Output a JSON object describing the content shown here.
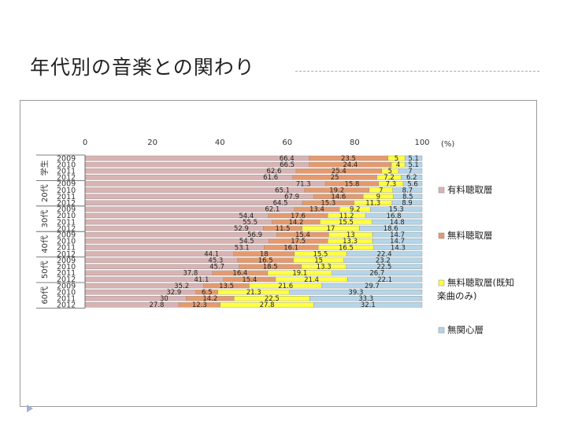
{
  "slide": {
    "title": "年代別の音楽との関わり"
  },
  "chart_data": {
    "type": "bar",
    "orientation": "horizontal",
    "stacked": "percent",
    "unit_label": "(%)",
    "xlim": [
      0,
      100
    ],
    "x_ticks": [
      0,
      20,
      40,
      60,
      80,
      100
    ],
    "groups": [
      {
        "name": "学生",
        "years": [
          "2009",
          "2010",
          "2011",
          "2012"
        ]
      },
      {
        "name": "20代",
        "years": [
          "2009",
          "2010",
          "2011",
          "2012"
        ]
      },
      {
        "name": "30代",
        "years": [
          "2009",
          "2010",
          "2011",
          "2012"
        ]
      },
      {
        "name": "40代",
        "years": [
          "2009",
          "2010",
          "2011",
          "2012"
        ]
      },
      {
        "name": "50代",
        "years": [
          "2009",
          "2010",
          "2011",
          "2012"
        ]
      },
      {
        "name": "60代",
        "years": [
          "2009",
          "2010",
          "2011",
          "2012"
        ]
      }
    ],
    "series": [
      {
        "name": "有料聴取層",
        "color": "#d9b3b3",
        "values": [
          66.4,
          66.5,
          62.6,
          61.6,
          71.3,
          65.1,
          67.9,
          64.5,
          62.1,
          54.4,
          55.5,
          52.9,
          56.9,
          54.5,
          53.1,
          44.1,
          45.3,
          45.7,
          37.8,
          41.1,
          35.2,
          32.9,
          30,
          27.8
        ]
      },
      {
        "name": "無料聴取層",
        "color": "#e59a6e",
        "values": [
          23.5,
          24.4,
          25.4,
          25,
          15.8,
          19.2,
          14.6,
          15.3,
          13.4,
          17.6,
          14.2,
          11.5,
          15.4,
          17.5,
          16.1,
          18,
          16.5,
          18.5,
          16.4,
          15.4,
          13.5,
          6.5,
          14.2,
          12.3
        ]
      },
      {
        "name": "無料聴取層(既知楽曲のみ)",
        "color": "#ffff44",
        "values": [
          5,
          4,
          5,
          7.2,
          7.3,
          7,
          9,
          11.3,
          9.2,
          11.2,
          15.5,
          17,
          13,
          13.3,
          16.5,
          15.5,
          15,
          13.3,
          19.1,
          21.4,
          21.6,
          21.3,
          22.5,
          27.8
        ]
      },
      {
        "name": "無関心層",
        "color": "#b5d5e8",
        "values": [
          5.1,
          5.1,
          7,
          6.2,
          5.6,
          8.7,
          8.5,
          8.9,
          15.3,
          16.8,
          14.8,
          18.6,
          14.7,
          14.7,
          14.3,
          22.4,
          23.2,
          22.5,
          26.7,
          22.1,
          29.7,
          39.3,
          33.3,
          32.1
        ]
      }
    ],
    "data_labels": [
      [
        "66.4",
        "23.5",
        "5",
        "5.1"
      ],
      [
        "66.5",
        "24.4",
        "4",
        "5.1"
      ],
      [
        "62.6",
        "25.4",
        "5",
        "7"
      ],
      [
        "61.6",
        "25",
        "7.2",
        "6.2"
      ],
      [
        "71.3",
        "15.8",
        "7.3",
        "5.6"
      ],
      [
        "65.1",
        "19.2",
        "7",
        "8.7"
      ],
      [
        "67.9",
        "14.6",
        "9",
        "8.5"
      ],
      [
        "64.5",
        "15.3",
        "11.3",
        "8.9"
      ],
      [
        "62.1",
        "13.4",
        "9.2",
        "15.3"
      ],
      [
        "54.4",
        "17.6",
        "11.2",
        "16.8"
      ],
      [
        "55.5",
        "14.2",
        "15.5",
        "14.8"
      ],
      [
        "52.9",
        "11.5",
        "17",
        "18.6"
      ],
      [
        "56.9",
        "15.4",
        "13",
        "14.7"
      ],
      [
        "54.5",
        "17.5",
        "13.3",
        "14.7"
      ],
      [
        "53.1",
        "16.1",
        "16.5",
        "14.3"
      ],
      [
        "44.1",
        "18",
        "15.5",
        "22.4"
      ],
      [
        "45.3",
        "16.5",
        "15",
        "23.2"
      ],
      [
        "45.7",
        "18.5",
        "13.3",
        "22.5"
      ],
      [
        "37.8",
        "16.4",
        "19.1",
        "26.7"
      ],
      [
        "41.1",
        "15.4",
        "21.4",
        "22.1"
      ],
      [
        "35.2",
        "13.5",
        "21.6",
        "29.7"
      ],
      [
        "32.9",
        "6.5",
        "21.3",
        "39.3"
      ],
      [
        "30",
        "14.2",
        "22.5",
        "33.3"
      ],
      [
        "27.8",
        "12.3",
        "27.8",
        "32.1"
      ]
    ],
    "legend_position": "right",
    "grid": false
  }
}
